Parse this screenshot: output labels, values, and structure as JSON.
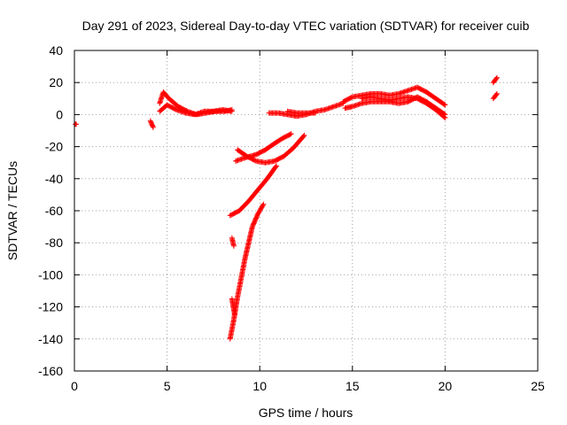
{
  "chart_data": {
    "type": "scatter",
    "title": "Day 291 of 2023, Sidereal Day-to-day VTEC variation (SDTVAR) for receiver cuib",
    "xlabel": "GPS time / hours",
    "ylabel": "SDTVAR / TECUs",
    "xlim": [
      0,
      25
    ],
    "ylim": [
      -160,
      40
    ],
    "xticks": [
      "0",
      "5",
      "10",
      "15",
      "20",
      "25"
    ],
    "yticks": [
      "40",
      "20",
      "0",
      "-20",
      "-40",
      "-60",
      "-80",
      "-100",
      "-120",
      "-140",
      "-160"
    ],
    "grid": true,
    "marker": "plus",
    "color": "#ff0000",
    "series": [
      {
        "segments": [
          [
            [
              0.05,
              -6
            ],
            [
              0.1,
              -6
            ]
          ],
          [
            [
              4.1,
              -4
            ],
            [
              4.25,
              -8
            ]
          ],
          [
            [
              4.6,
              7
            ],
            [
              4.8,
              14
            ],
            [
              5.1,
              10
            ],
            [
              5.6,
              5
            ],
            [
              6.1,
              2
            ],
            [
              6.6,
              0
            ],
            [
              7.1,
              1
            ],
            [
              7.6,
              2
            ],
            [
              8.1,
              2
            ],
            [
              8.5,
              3
            ]
          ],
          [
            [
              4.6,
              2
            ],
            [
              5.0,
              6
            ],
            [
              5.5,
              3
            ],
            [
              6.0,
              1
            ],
            [
              6.5,
              0
            ],
            [
              7.0,
              2
            ],
            [
              7.5,
              2
            ],
            [
              8.0,
              3
            ],
            [
              8.5,
              2
            ]
          ],
          [
            [
              10.5,
              1
            ],
            [
              11.0,
              1
            ],
            [
              11.5,
              0
            ],
            [
              12.0,
              -1
            ],
            [
              12.5,
              0
            ],
            [
              13.0,
              2
            ],
            [
              13.5,
              3
            ],
            [
              14.0,
              5
            ],
            [
              14.5,
              7
            ]
          ],
          [
            [
              11.5,
              2
            ],
            [
              12.0,
              1
            ],
            [
              12.5,
              1
            ],
            [
              13.0,
              1
            ]
          ],
          [
            [
              14.5,
              8
            ],
            [
              15.0,
              11
            ],
            [
              15.5,
              12
            ],
            [
              16.0,
              13
            ],
            [
              16.5,
              13
            ],
            [
              17.0,
              12
            ],
            [
              17.5,
              13
            ],
            [
              18.0,
              15
            ],
            [
              18.5,
              17
            ],
            [
              19.0,
              14
            ],
            [
              19.5,
              10
            ],
            [
              20.0,
              6
            ]
          ],
          [
            [
              14.6,
              4
            ],
            [
              15.0,
              5
            ],
            [
              15.5,
              7
            ],
            [
              16.0,
              8
            ],
            [
              16.5,
              8
            ],
            [
              17.0,
              8
            ],
            [
              17.5,
              7
            ],
            [
              18.0,
              8
            ],
            [
              18.5,
              11
            ],
            [
              19.0,
              8
            ],
            [
              19.5,
              4
            ],
            [
              20.0,
              0
            ]
          ],
          [
            [
              15.5,
              10
            ],
            [
              16.0,
              11
            ],
            [
              16.5,
              10
            ],
            [
              17.0,
              9
            ],
            [
              17.5,
              10
            ],
            [
              18.0,
              11
            ],
            [
              18.5,
              10
            ],
            [
              19.0,
              7
            ],
            [
              19.5,
              3
            ],
            [
              20.0,
              -2
            ]
          ],
          [
            [
              22.6,
              20
            ],
            [
              22.8,
              23
            ]
          ],
          [
            [
              22.6,
              10
            ],
            [
              22.8,
              13
            ]
          ],
          [
            [
              8.8,
              -22
            ],
            [
              9.3,
              -26
            ],
            [
              9.8,
              -29
            ],
            [
              10.3,
              -30
            ],
            [
              10.8,
              -29
            ],
            [
              11.3,
              -26
            ],
            [
              11.8,
              -21
            ],
            [
              12.4,
              -13
            ]
          ],
          [
            [
              8.7,
              -29
            ],
            [
              9.2,
              -27
            ],
            [
              9.8,
              -25
            ],
            [
              10.3,
              -22
            ],
            [
              10.8,
              -18
            ],
            [
              11.2,
              -15
            ],
            [
              11.7,
              -12
            ]
          ],
          [
            [
              8.4,
              -63
            ],
            [
              8.9,
              -60
            ],
            [
              9.4,
              -54
            ],
            [
              9.9,
              -47
            ],
            [
              10.4,
              -40
            ],
            [
              10.9,
              -32
            ]
          ],
          [
            [
              8.5,
              -77
            ],
            [
              8.6,
              -82
            ]
          ],
          [
            [
              8.4,
              -140
            ],
            [
              8.6,
              -128
            ],
            [
              8.8,
              -114
            ],
            [
              9.0,
              -102
            ],
            [
              9.2,
              -90
            ],
            [
              9.4,
              -80
            ],
            [
              9.6,
              -70
            ],
            [
              9.9,
              -62
            ],
            [
              10.2,
              -56
            ]
          ],
          [
            [
              8.5,
              -115
            ],
            [
              8.65,
              -125
            ]
          ]
        ]
      }
    ]
  }
}
